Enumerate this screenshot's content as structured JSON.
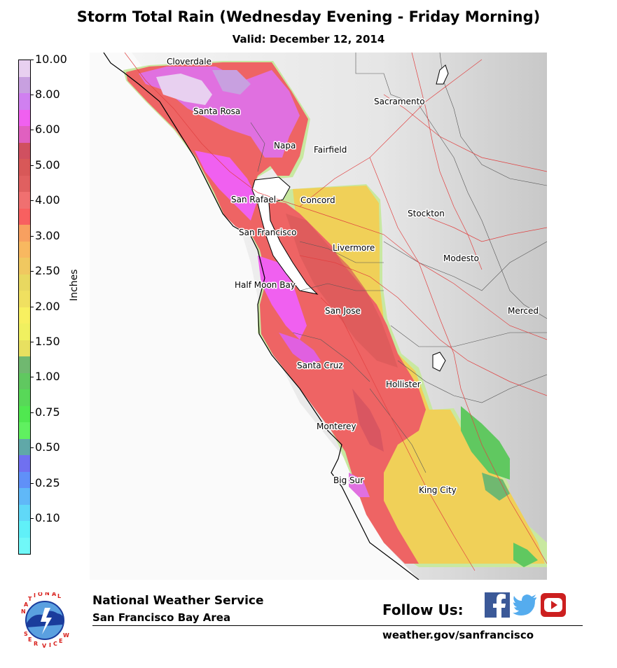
{
  "title": "Storm Total Rain (Wednesday Evening - Friday Morning)",
  "subtitle": "Valid: December 12, 2014",
  "colorbar": {
    "label": "Inches",
    "tick_labels": [
      "10.00",
      "8.00",
      "6.00",
      "5.00",
      "4.00",
      "3.00",
      "2.50",
      "2.00",
      "1.50",
      "1.00",
      "0.75",
      "0.50",
      "0.25",
      "0.10"
    ],
    "colors": [
      "#e8d0f0",
      "#c8a0e0",
      "#d080f0",
      "#f060f0",
      "#e060c0",
      "#d05060",
      "#d85858",
      "#e06060",
      "#f07070",
      "#f86060",
      "#f8a060",
      "#f8b860",
      "#f0c860",
      "#e8d860",
      "#f0e060",
      "#f8f060",
      "#f0f060",
      "#e8e060",
      "#70b870",
      "#60c860",
      "#58d858",
      "#50e850",
      "#60f060",
      "#60a8a8",
      "#7070f0",
      "#6090f8",
      "#60b8f8",
      "#60d8f8",
      "#60f0f8",
      "#70f8f8"
    ]
  },
  "cities": [
    "Cloverdale",
    "Santa Rosa",
    "Napa",
    "Fairfield",
    "Sacramento",
    "San Rafael",
    "Concord",
    "San Francisco",
    "Stockton",
    "Livermore",
    "Modesto",
    "Half Moon Bay",
    "San Jose",
    "Merced",
    "Santa Cruz",
    "Hollister",
    "Monterey",
    "Big Sur",
    "King City"
  ],
  "footer": {
    "org_name": "National Weather Service",
    "office": "San Francisco Bay Area",
    "follow_label": "Follow Us:",
    "url": "weather.gov/sanfrancisco",
    "logo_text": "NATIONAL WEATHER SERVICE"
  },
  "social_icons": [
    "facebook-icon",
    "twitter-icon",
    "youtube-icon"
  ],
  "brand_colors": {
    "facebook": "#3b5998",
    "twitter": "#55acee",
    "youtube": "#cc1f1f",
    "nws_blue": "#1a3c9c",
    "nws_red": "#d8201c"
  }
}
